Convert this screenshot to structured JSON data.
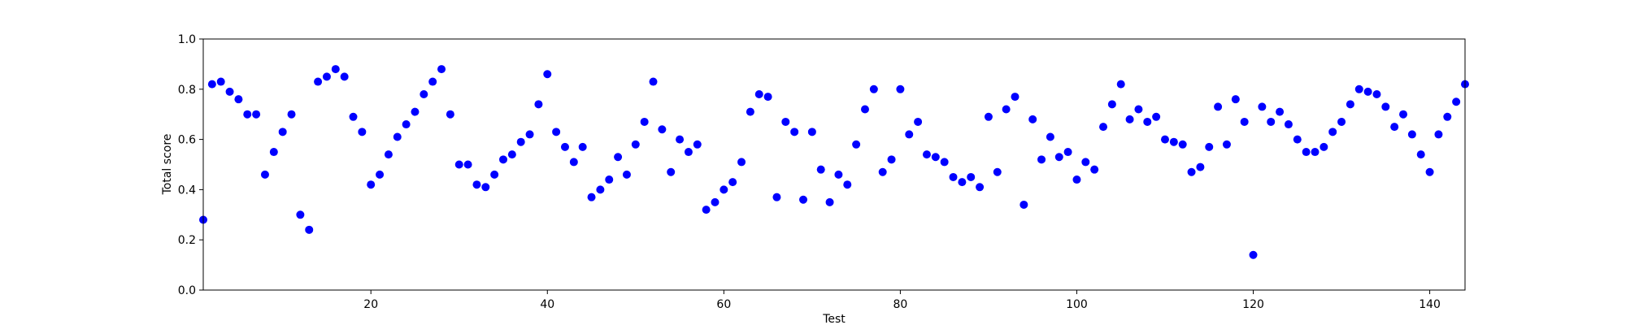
{
  "chart_data": {
    "type": "scatter",
    "title": "",
    "xlabel": "Test",
    "ylabel": "Total score",
    "xlim": [
      1,
      144
    ],
    "ylim": [
      0.0,
      1.0
    ],
    "xticks": [
      20,
      40,
      60,
      80,
      100,
      120,
      140
    ],
    "xtick_labels": [
      "20",
      "40",
      "60",
      "80",
      "100",
      "120",
      "140"
    ],
    "yticks": [
      0.0,
      0.2,
      0.4,
      0.6,
      0.8,
      1.0
    ],
    "ytick_labels": [
      "0.0",
      "0.2",
      "0.4",
      "0.6",
      "0.8",
      "1.0"
    ],
    "grid": false,
    "marker_color": "#0000ff",
    "x": [
      1,
      2,
      3,
      4,
      5,
      6,
      7,
      8,
      9,
      10,
      11,
      12,
      13,
      14,
      15,
      16,
      17,
      18,
      19,
      20,
      21,
      22,
      23,
      24,
      25,
      26,
      27,
      28,
      29,
      30,
      31,
      32,
      33,
      34,
      35,
      36,
      37,
      38,
      39,
      40,
      41,
      42,
      43,
      44,
      45,
      46,
      47,
      48,
      49,
      50,
      51,
      52,
      53,
      54,
      55,
      56,
      57,
      58,
      59,
      60,
      61,
      62,
      63,
      64,
      65,
      66,
      67,
      68,
      69,
      70,
      71,
      72,
      73,
      74,
      75,
      76,
      77,
      78,
      79,
      80,
      81,
      82,
      83,
      84,
      85,
      86,
      87,
      88,
      89,
      90,
      91,
      92,
      93,
      94,
      95,
      96,
      97,
      98,
      99,
      100,
      101,
      102,
      103,
      104,
      105,
      106,
      107,
      108,
      109,
      110,
      111,
      112,
      113,
      114,
      115,
      116,
      117,
      118,
      119,
      120,
      121,
      122,
      123,
      124,
      125,
      126,
      127,
      128,
      129,
      130,
      131,
      132,
      133,
      134,
      135,
      136,
      137,
      138,
      139,
      140,
      141,
      142,
      143,
      144
    ],
    "y": [
      0.28,
      0.82,
      0.83,
      0.79,
      0.76,
      0.7,
      0.7,
      0.46,
      0.55,
      0.63,
      0.7,
      0.3,
      0.24,
      0.83,
      0.85,
      0.88,
      0.85,
      0.69,
      0.63,
      0.42,
      0.46,
      0.54,
      0.61,
      0.66,
      0.71,
      0.78,
      0.83,
      0.88,
      0.7,
      0.5,
      0.5,
      0.42,
      0.41,
      0.46,
      0.52,
      0.54,
      0.59,
      0.62,
      0.74,
      0.86,
      0.63,
      0.57,
      0.51,
      0.57,
      0.37,
      0.4,
      0.44,
      0.53,
      0.46,
      0.58,
      0.67,
      0.83,
      0.64,
      0.47,
      0.6,
      0.55,
      0.58,
      0.32,
      0.35,
      0.4,
      0.43,
      0.51,
      0.71,
      0.78,
      0.77,
      0.37,
      0.67,
      0.63,
      0.36,
      0.63,
      0.48,
      0.35,
      0.46,
      0.42,
      0.58,
      0.72,
      0.8,
      0.47,
      0.52,
      0.8,
      0.62,
      0.67,
      0.54,
      0.53,
      0.51,
      0.45,
      0.43,
      0.45,
      0.41,
      0.69,
      0.47,
      0.72,
      0.77,
      0.34,
      0.68,
      0.52,
      0.61,
      0.53,
      0.55,
      0.44,
      0.51,
      0.48,
      0.65,
      0.74,
      0.82,
      0.68,
      0.72,
      0.67,
      0.69,
      0.6,
      0.59,
      0.58,
      0.47,
      0.49,
      0.57,
      0.73,
      0.58,
      0.76,
      0.67,
      0.14,
      0.73,
      0.67,
      0.71,
      0.66,
      0.6,
      0.55,
      0.55,
      0.57,
      0.63,
      0.67,
      0.74,
      0.8,
      0.79,
      0.78,
      0.73,
      0.65,
      0.7,
      0.62,
      0.54,
      0.47,
      0.62,
      0.69,
      0.75,
      0.82
    ]
  }
}
